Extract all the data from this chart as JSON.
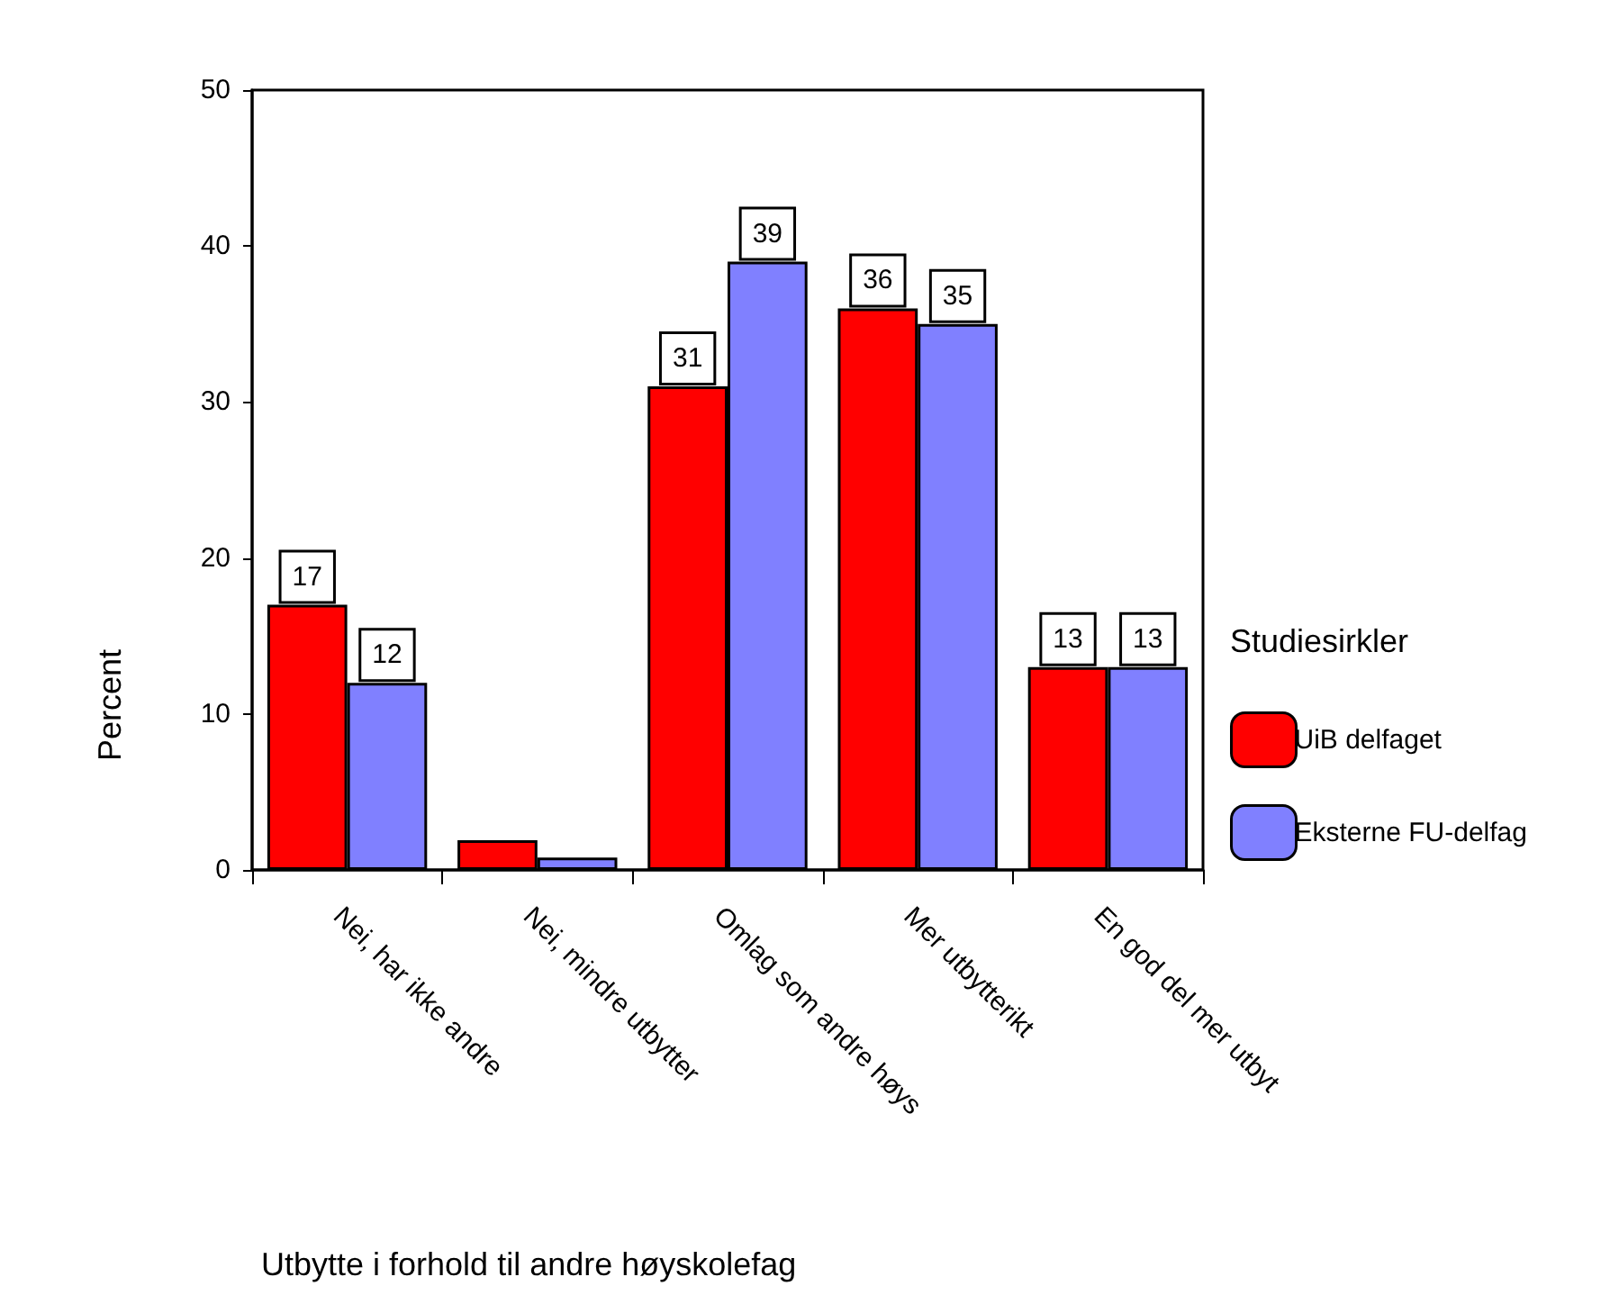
{
  "chart_data": {
    "type": "bar",
    "xlabel": "Utbytte i forhold til andre høyskolefag",
    "ylabel": "Percent",
    "legend_title": "Studiesirkler",
    "categories": [
      "Nei, har ikke andre",
      "Nei, mindre utbytter",
      "Omlag som andre høys",
      "Mer utbytterikt",
      "En god del mer utbyt"
    ],
    "series": [
      {
        "name": "UiB delfaget",
        "color": "#ff0000",
        "values": [
          17,
          1.9,
          31,
          36,
          13
        ],
        "value_labels": [
          "17",
          null,
          "31",
          "36",
          "13"
        ]
      },
      {
        "name": "Eksterne FU-delfag",
        "color": "#8080ff",
        "values": [
          12,
          0.8,
          39,
          35,
          13
        ],
        "value_labels": [
          "12",
          null,
          "39",
          "35",
          "13"
        ]
      }
    ],
    "ylim": [
      0,
      50
    ],
    "yticks": [
      0,
      10,
      20,
      30,
      40,
      50
    ],
    "grid": false,
    "legend": "right"
  }
}
